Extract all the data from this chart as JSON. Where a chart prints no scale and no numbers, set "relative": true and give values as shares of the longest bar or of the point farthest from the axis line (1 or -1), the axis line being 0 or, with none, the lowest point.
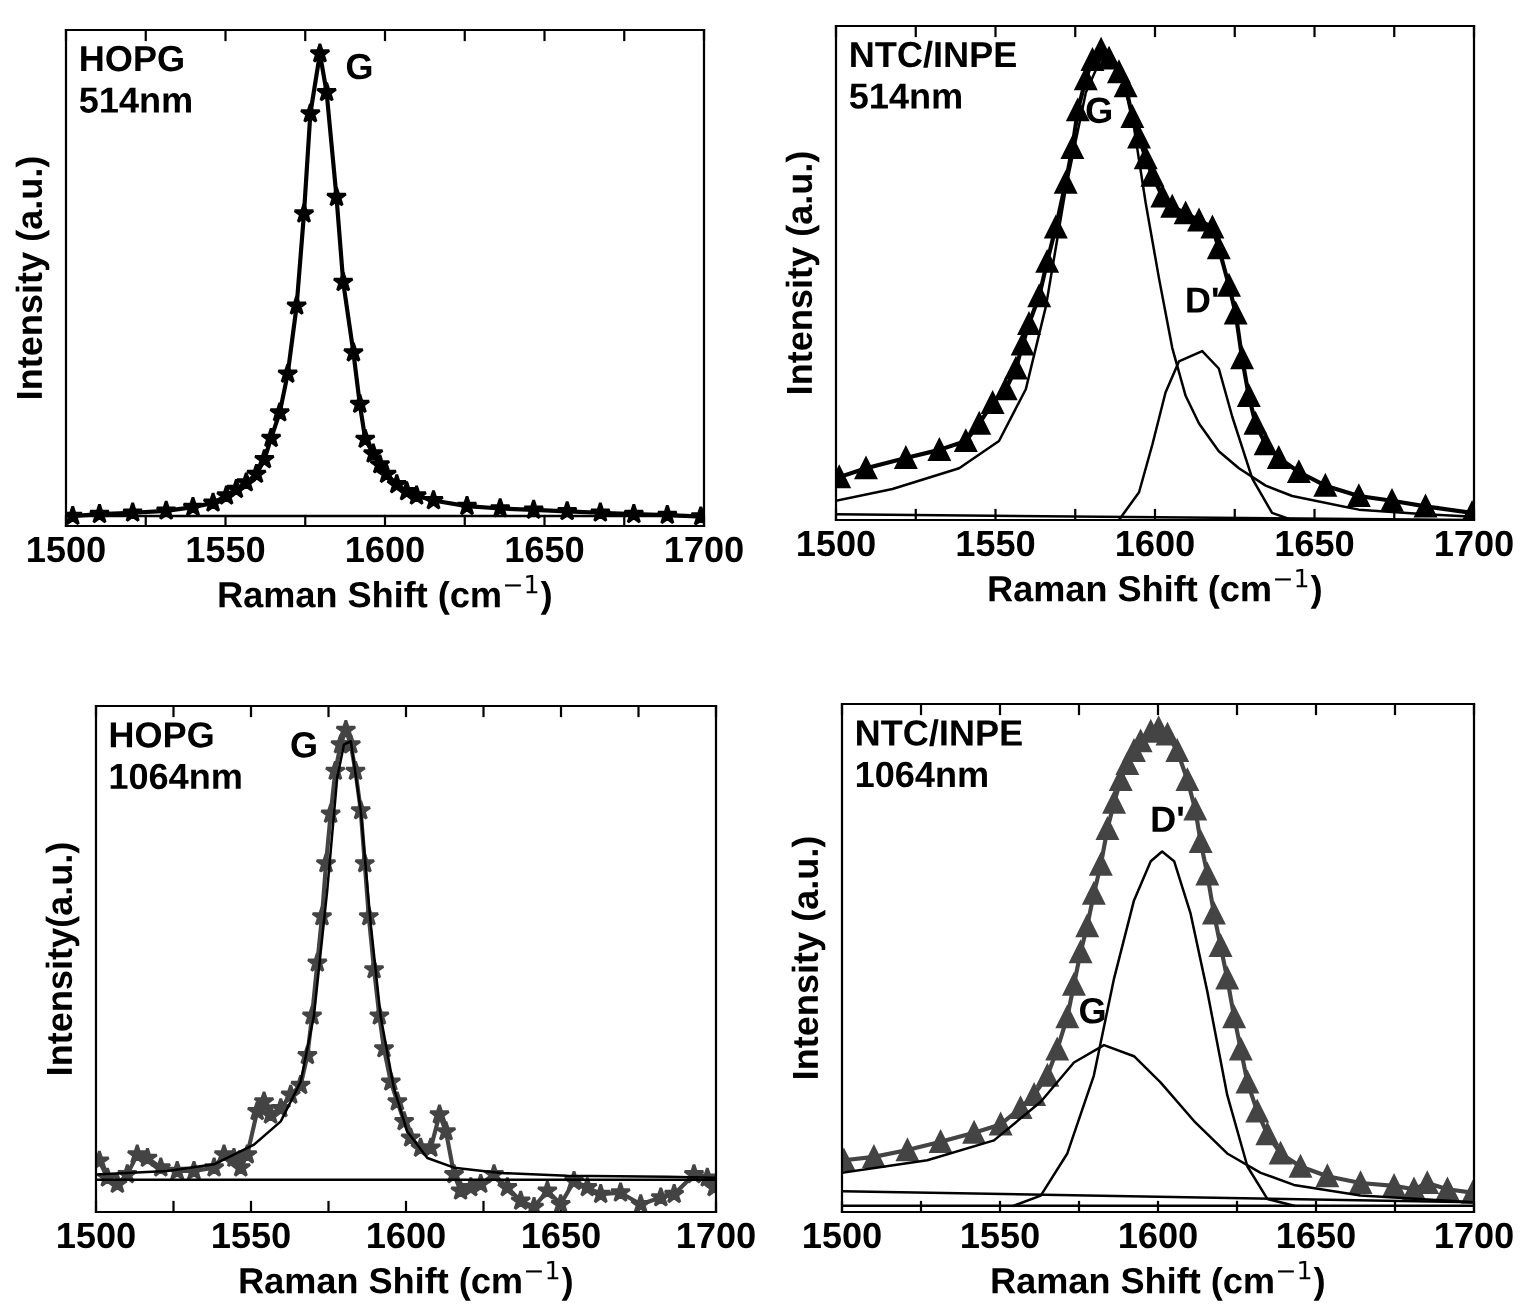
{
  "chart_data": [
    {
      "type": "line",
      "relative": true,
      "xlabel": "Raman Shift (cm$^{−1}$)",
      "ylabel": "Intensity (a.u.)",
      "xlim": [
        1500,
        1700
      ],
      "xticks": [
        1500,
        {
          "value": 1525,
          "label": null
        },
        1550,
        {
          "value": 1575,
          "label": null
        },
        1600,
        {
          "value": 1625,
          "label": null
        },
        1650,
        {
          "value": 1675,
          "label": null
        },
        1700
      ],
      "annotations": [
        "HOPG\n514nm",
        "G"
      ],
      "series": [
        {
          "color": "#000000",
          "marker": "star",
          "x": [
            1502.1,
            1510.5,
            1520.9,
            1531.4,
            1539.8,
            1546.1,
            1550.3,
            1553.4,
            1556.5,
            1559.7,
            1562.2,
            1564.3,
            1567.0,
            1569.5,
            1572.3,
            1574.6,
            1576.6,
            1579.6,
            1581.7,
            1584.8,
            1586.9,
            1590.1,
            1592.1,
            1593.8,
            1596.3,
            1598.4,
            1600.5,
            1603.7,
            1606.8,
            1609.9,
            1615.2,
            1625.7,
            1636.1,
            1646.6,
            1657.1,
            1667.5,
            1678.0,
            1688.5,
            1699.0
          ],
          "values": [
            0.021,
            0.025,
            0.028,
            0.032,
            0.04,
            0.049,
            0.064,
            0.078,
            0.092,
            0.11,
            0.141,
            0.186,
            0.24,
            0.322,
            0.466,
            0.661,
            0.873,
            1.0,
            0.918,
            0.696,
            0.516,
            0.367,
            0.258,
            0.184,
            0.153,
            0.13,
            0.11,
            0.088,
            0.073,
            0.064,
            0.054,
            0.042,
            0.037,
            0.034,
            0.031,
            0.028,
            0.025,
            0.023,
            0.02
          ]
        },
        {
          "color": "#000000",
          "marker": "none",
          "x": [
            1500,
            1700
          ],
          "values": [
            0.021,
            0.021
          ]
        }
      ]
    },
    {
      "type": "line",
      "relative": true,
      "xlabel": "Raman Shift (cm$^{−1}$)",
      "ylabel": "Intensity (a.u.)",
      "xlim": [
        1500,
        1700
      ],
      "xticks": [
        1500,
        {
          "value": 1525,
          "label": null
        },
        1550,
        {
          "value": 1575,
          "label": null
        },
        1600,
        {
          "value": 1625,
          "label": null
        },
        1650,
        {
          "value": 1675,
          "label": null
        },
        1700
      ],
      "annotations": [
        "NTC/INPE\n514nm",
        "G",
        "D'"
      ],
      "series": [
        {
          "color": "#000000",
          "marker": "triangle",
          "x": [
            1501.0,
            1509.4,
            1521.9,
            1532.4,
            1540.7,
            1544.9,
            1549.1,
            1553.2,
            1556.4,
            1558.5,
            1560.5,
            1563.7,
            1566.2,
            1568.9,
            1572.0,
            1574.1,
            1575.8,
            1578.3,
            1580.4,
            1583.1,
            1585.6,
            1588.7,
            1590.8,
            1592.9,
            1595.0,
            1597.1,
            1599.2,
            1602.3,
            1605.4,
            1609.6,
            1613.8,
            1618.0,
            1620.0,
            1623.2,
            1625.3,
            1627.3,
            1629.4,
            1631.5,
            1634.7,
            1638.8,
            1645.1,
            1653.4,
            1663.9,
            1674.3,
            1684.8,
            1699.4
          ],
          "values": [
            0.091,
            0.11,
            0.132,
            0.149,
            0.168,
            0.205,
            0.249,
            0.278,
            0.322,
            0.373,
            0.417,
            0.476,
            0.549,
            0.622,
            0.717,
            0.791,
            0.871,
            0.937,
            0.978,
            1.0,
            0.981,
            0.952,
            0.922,
            0.857,
            0.813,
            0.769,
            0.732,
            0.688,
            0.666,
            0.652,
            0.637,
            0.622,
            0.578,
            0.498,
            0.439,
            0.344,
            0.264,
            0.205,
            0.161,
            0.132,
            0.102,
            0.073,
            0.051,
            0.041,
            0.029,
            0.015
          ]
        },
        {
          "color": "#000000",
          "marker": "none",
          "x": [
            1500,
            1517.7,
            1538.6,
            1551.1,
            1559.5,
            1565.8,
            1572.0,
            1578.3,
            1583.5,
            1588.7,
            1592.9,
            1597.1,
            1601.3,
            1605.4,
            1609.6,
            1613.8,
            1620.0,
            1626.3,
            1634.7,
            1643.0,
            1663.9,
            1684.8,
            1700
          ],
          "values": [
            0.041,
            0.066,
            0.11,
            0.168,
            0.278,
            0.454,
            0.703,
            0.908,
            0.988,
            0.966,
            0.857,
            0.673,
            0.512,
            0.366,
            0.264,
            0.205,
            0.146,
            0.11,
            0.073,
            0.051,
            0.022,
            0.012,
            0.007
          ]
        },
        {
          "color": "#000000",
          "marker": "none",
          "x": [
            1588.7,
            1595.0,
            1599.2,
            1603.3,
            1607.5,
            1614.8,
            1620.0,
            1624.2,
            1630.5,
            1636.7,
            1643.0
          ],
          "values": [
            0,
            0.059,
            0.161,
            0.271,
            0.337,
            0.359,
            0.322,
            0.22,
            0.088,
            0.015,
            0
          ]
        },
        {
          "color": "#000000",
          "marker": "none",
          "x": [
            1500,
            1700
          ],
          "values": [
            0.012,
            0
          ]
        }
      ]
    },
    {
      "type": "line",
      "relative": true,
      "xlabel": "Raman Shift (cm$^{−1}$)",
      "ylabel": "Intensity(a.u.)",
      "xlim": [
        1500,
        1700
      ],
      "xticks": [
        1500,
        {
          "value": 1525,
          "label": null
        },
        1550,
        {
          "value": 1575,
          "label": null
        },
        1600,
        {
          "value": 1625,
          "label": null
        },
        1650,
        {
          "value": 1675,
          "label": null
        },
        1700
      ],
      "annotations": [
        "HOPG\n1064nm",
        "G"
      ],
      "series": [
        {
          "color": "#444444",
          "marker": "star",
          "x": [
            1501.1,
            1503.7,
            1506.9,
            1510.1,
            1513.3,
            1516.6,
            1520.9,
            1526.2,
            1531.6,
            1538.1,
            1541.3,
            1544.5,
            1546.7,
            1548.8,
            1552.0,
            1554.2,
            1556.3,
            1559.6,
            1562.8,
            1566.0,
            1568.2,
            1569.7,
            1571.4,
            1572.9,
            1574.2,
            1575.7,
            1577.2,
            1578.9,
            1580.6,
            1582.2,
            1583.7,
            1585.4,
            1586.7,
            1588.0,
            1589.7,
            1591.4,
            1592.9,
            1595.1,
            1597.2,
            1599.4,
            1601.5,
            1604.7,
            1608.0,
            1610.8,
            1612.9,
            1615.5,
            1617.6,
            1620.9,
            1624.1,
            1628.4,
            1632.7,
            1637.0,
            1641.3,
            1645.6,
            1649.9,
            1654.2,
            1658.5,
            1662.8,
            1669.2,
            1675.7,
            1682.2,
            1686.5,
            1692.9,
            1697.2,
            1699.4
          ],
          "values": [
            0.106,
            0.071,
            0.058,
            0.078,
            0.119,
            0.112,
            0.092,
            0.085,
            0.085,
            0.092,
            0.119,
            0.112,
            0.092,
            0.119,
            0.209,
            0.229,
            0.202,
            0.215,
            0.243,
            0.263,
            0.325,
            0.407,
            0.517,
            0.613,
            0.723,
            0.826,
            0.915,
            0.97,
            1.0,
            0.97,
            0.915,
            0.833,
            0.723,
            0.613,
            0.503,
            0.407,
            0.339,
            0.27,
            0.229,
            0.188,
            0.154,
            0.133,
            0.133,
            0.202,
            0.167,
            0.078,
            0.044,
            0.051,
            0.058,
            0.078,
            0.051,
            0.023,
            0.01,
            0.044,
            0.016,
            0.064,
            0.051,
            0.037,
            0.04,
            0.016,
            0.03,
            0.037,
            0.078,
            0.071,
            0.051
          ]
        },
        {
          "color": "#000000",
          "marker": "none",
          "x": [
            1500,
            1523.0,
            1538.1,
            1551.0,
            1559.6,
            1566.0,
            1570.3,
            1574.6,
            1577.8,
            1580.0,
            1582.2,
            1585.4,
            1588.6,
            1591.8,
            1596.1,
            1600.4,
            1606.9,
            1615.5,
            1630.5,
            1652.0,
            1684.3,
            1700
          ],
          "values": [
            0.078,
            0.085,
            0.099,
            0.14,
            0.188,
            0.27,
            0.407,
            0.668,
            0.901,
            0.97,
            0.977,
            0.833,
            0.599,
            0.407,
            0.257,
            0.167,
            0.112,
            0.092,
            0.081,
            0.075,
            0.073,
            0.071
          ]
        },
        {
          "color": "#000000",
          "marker": "none",
          "x": [
            1500,
            1700
          ],
          "values": [
            0.067,
            0.067
          ]
        }
      ]
    },
    {
      "type": "line",
      "relative": true,
      "xlabel": "Raman Shift (cm$^{−1}$)",
      "ylabel": "Intensity (a.u.)",
      "xlim": [
        1500,
        1700
      ],
      "xticks": [
        1500,
        {
          "value": 1525,
          "label": null
        },
        1550,
        {
          "value": 1575,
          "label": null
        },
        1600,
        {
          "value": 1625,
          "label": null
        },
        1650,
        {
          "value": 1675,
          "label": null
        },
        1700
      ],
      "annotations": [
        "NTC/INPE\n1064nm",
        "G",
        "D'"
      ],
      "series": [
        {
          "color": "#444444",
          "marker": "triangle",
          "x": [
            1500.6,
            1510.1,
            1520.7,
            1531.2,
            1541.8,
            1550.2,
            1556.5,
            1560.8,
            1565.0,
            1568.1,
            1571.3,
            1573.4,
            1575.5,
            1577.6,
            1579.7,
            1581.9,
            1584.0,
            1586.1,
            1588.2,
            1590.3,
            1592.4,
            1594.5,
            1597.7,
            1600.2,
            1603.0,
            1606.1,
            1609.3,
            1611.8,
            1613.5,
            1615.6,
            1617.7,
            1619.8,
            1621.9,
            1624.1,
            1626.2,
            1628.3,
            1631.4,
            1634.6,
            1638.8,
            1645.1,
            1653.6,
            1664.1,
            1674.7,
            1681.0,
            1685.2,
            1691.6,
            1699.6
          ],
          "values": [
            0.107,
            0.114,
            0.128,
            0.145,
            0.164,
            0.181,
            0.215,
            0.242,
            0.282,
            0.336,
            0.403,
            0.47,
            0.537,
            0.591,
            0.658,
            0.718,
            0.792,
            0.846,
            0.893,
            0.926,
            0.953,
            0.973,
            0.993,
            1.0,
            0.987,
            0.953,
            0.893,
            0.832,
            0.765,
            0.698,
            0.617,
            0.55,
            0.483,
            0.403,
            0.336,
            0.268,
            0.208,
            0.161,
            0.121,
            0.094,
            0.074,
            0.06,
            0.054,
            0.047,
            0.06,
            0.047,
            0.04
          ]
        },
        {
          "color": "#000000",
          "marker": "none",
          "x": [
            1500,
            1527.0,
            1548.1,
            1562.9,
            1573.4,
            1582.9,
            1592.4,
            1600.8,
            1611.4,
            1621.9,
            1632.5,
            1643.0,
            1664.1,
            1700
          ],
          "values": [
            0.081,
            0.107,
            0.148,
            0.228,
            0.309,
            0.345,
            0.322,
            0.268,
            0.188,
            0.121,
            0.081,
            0.056,
            0.034,
            0.02
          ]
        },
        {
          "color": "#000000",
          "marker": "none",
          "x": [
            1554.4,
            1562.9,
            1571.3,
            1579.7,
            1586.1,
            1592.4,
            1597.7,
            1601.3,
            1605.1,
            1610.3,
            1615.6,
            1621.9,
            1628.3,
            1634.6,
            1643.0
          ],
          "values": [
            0.013,
            0.034,
            0.121,
            0.282,
            0.483,
            0.644,
            0.725,
            0.745,
            0.725,
            0.617,
            0.456,
            0.242,
            0.094,
            0.027,
            0.013
          ]
        },
        {
          "color": "#000000",
          "marker": "none",
          "x": [
            1500,
            1700
          ],
          "values": [
            0.043,
            0.02
          ]
        },
        {
          "color": "#000000",
          "marker": "none",
          "x": [
            1500,
            1700
          ],
          "values": [
            0.013,
            0.013
          ]
        }
      ]
    }
  ]
}
